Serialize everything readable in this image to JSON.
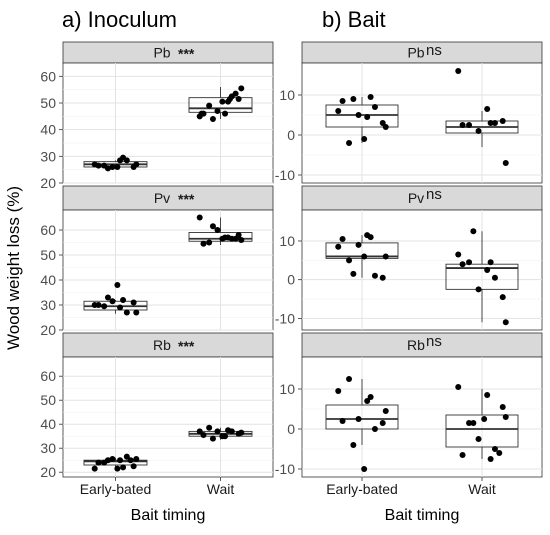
{
  "chart_data": {
    "type": "boxplot-strip",
    "ylabel": "Wood weight loss (%)",
    "categories": [
      "Early-bated",
      "Wait"
    ],
    "grid": true,
    "panels": [
      {
        "title": "a) Inoculum",
        "xlabel": "Bait timing",
        "facets": [
          {
            "strip_label": "Pb",
            "significance": "***",
            "ylim": [
              20,
              65
            ],
            "yticks": [
              20,
              30,
              40,
              50,
              60
            ],
            "boxes": [
              {
                "category": "Early-bated",
                "min": 26,
                "q1": 26,
                "median": 27,
                "q3": 28,
                "max": 28.5
              },
              {
                "category": "Wait",
                "min": 44,
                "q1": 46.5,
                "median": 48,
                "q3": 52,
                "max": 56
              }
            ],
            "points": [
              {
                "category": "Early-bated",
                "values": [
                  27,
                  28.5,
                  26.5,
                  26,
                  26,
                  28.5,
                  26.5,
                  29.5,
                  27,
                  25.5,
                  26
                ]
              },
              {
                "category": "Wait",
                "values": [
                  45,
                  46,
                  49,
                  51.5,
                  47,
                  52.5,
                  46,
                  50.5,
                  55.5,
                  44,
                  50.5,
                  53.5,
                  46,
                  51.5
                ]
              }
            ]
          },
          {
            "strip_label": "Pv",
            "significance": "***",
            "ylim": [
              20,
              68
            ],
            "yticks": [
              20,
              30,
              40,
              50,
              60
            ],
            "boxes": [
              {
                "category": "Early-bated",
                "min": 26.5,
                "q1": 28,
                "median": 29.5,
                "q3": 31.5,
                "max": 32
              },
              {
                "category": "Wait",
                "min": 54,
                "q1": 55.5,
                "median": 56.5,
                "q3": 59,
                "max": 65
              }
            ],
            "points": [
              {
                "category": "Early-bated",
                "values": [
                  30,
                  29,
                  29.5,
                  31,
                  31.5,
                  27,
                  30,
                  32,
                  27,
                  33,
                  38
                ]
              },
              {
                "category": "Wait",
                "values": [
                  65,
                  57,
                  55,
                  58,
                  60,
                  56.5,
                  54.5,
                  57,
                  56,
                  61.5,
                  56.5,
                  56.5
                ]
              }
            ]
          },
          {
            "strip_label": "Rb",
            "significance": "***",
            "ylim": [
              18,
              68
            ],
            "yticks": [
              20,
              30,
              40,
              50,
              60
            ],
            "boxes": [
              {
                "category": "Early-bated",
                "min": 21.5,
                "q1": 23,
                "median": 24.5,
                "q3": 25,
                "max": 26
              },
              {
                "category": "Wait",
                "min": 33.5,
                "q1": 35,
                "median": 36,
                "q3": 37,
                "max": 38.5
              }
            ],
            "points": [
              {
                "category": "Early-bated",
                "values": [
                  21.5,
                  25,
                  24,
                  22.5,
                  25.5,
                  26.5,
                  24,
                  22,
                  25.5,
                  25,
                  21.5,
                  25
                ]
              },
              {
                "category": "Wait",
                "values": [
                  37,
                  35,
                  38.5,
                  36,
                  37,
                  37,
                  35.5,
                  37.5,
                  36.5,
                  34,
                  35
                ]
              }
            ]
          }
        ]
      },
      {
        "title": "b) Bait",
        "xlabel": "Bait timing",
        "facets": [
          {
            "strip_label": "Pb",
            "significance": "ns",
            "ylim": [
              -12,
              18
            ],
            "yticks": [
              -10,
              0,
              10
            ],
            "boxes": [
              {
                "category": "Early-bated",
                "min": -2,
                "q1": 2,
                "median": 5,
                "q3": 7.5,
                "max": 9.5
              },
              {
                "category": "Wait",
                "min": -3,
                "q1": 0.5,
                "median": 2,
                "q3": 3.5,
                "max": 6
              }
            ],
            "points": [
              {
                "category": "Early-bated",
                "values": [
                  6,
                  4.5,
                  -2,
                  3,
                  5,
                  7,
                  8.5,
                  9.5,
                  2,
                  9,
                  -1
                ]
              },
              {
                "category": "Wait",
                "values": [
                  16,
                  6.5,
                  2.5,
                  3.5,
                  1,
                  3,
                  2.5,
                  3,
                  -7
                ]
              }
            ]
          },
          {
            "strip_label": "Pv",
            "significance": "ns",
            "ylim": [
              -13,
              18
            ],
            "yticks": [
              -10,
              0,
              10
            ],
            "boxes": [
              {
                "category": "Early-bated",
                "min": 0.5,
                "q1": 5.5,
                "median": 6,
                "q3": 9.5,
                "max": 11.5
              },
              {
                "category": "Wait",
                "min": -11,
                "q1": -2.5,
                "median": 3,
                "q3": 4,
                "max": 12.5
              }
            ],
            "points": [
              {
                "category": "Early-bated",
                "values": [
                  8.5,
                  11.5,
                  5,
                  0.5,
                  9,
                  1,
                  10.5,
                  11,
                  6,
                  1.5,
                  6
                ]
              },
              {
                "category": "Wait",
                "values": [
                  6.5,
                  2.5,
                  4.5,
                  -4.5,
                  -2.5,
                  0.5,
                  4,
                  4.5,
                  -11,
                  12.5
                ]
              }
            ]
          },
          {
            "strip_label": "Rb",
            "significance": "ns",
            "ylim": [
              -12,
              18
            ],
            "yticks": [
              -10,
              0,
              10
            ],
            "boxes": [
              {
                "category": "Early-bated",
                "min": -4,
                "q1": 0,
                "median": 2.5,
                "q3": 6,
                "max": 12.5
              },
              {
                "category": "Wait",
                "min": -7.5,
                "q1": -4.5,
                "median": 0,
                "q3": 3.5,
                "max": 10
              }
            ],
            "points": [
              {
                "category": "Early-bated",
                "values": [
                  9.5,
                  7,
                  12.5,
                  1.5,
                  2.5,
                  0,
                  2,
                  8,
                  4.5,
                  -4,
                  -10
                ]
              },
              {
                "category": "Wait",
                "values": [
                  10.5,
                  8.5,
                  1.5,
                  5.5,
                  -2.5,
                  -5,
                  -6.5,
                  -7.5,
                  3,
                  1.5,
                  2.5,
                  -6
                ]
              }
            ]
          }
        ]
      }
    ]
  }
}
